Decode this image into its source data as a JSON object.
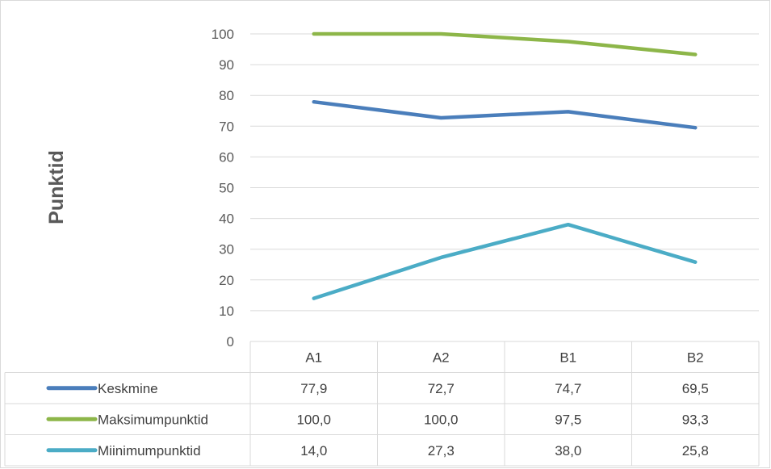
{
  "chart_data": {
    "type": "line",
    "ylabel": "Punktid",
    "categories": [
      "A1",
      "A2",
      "B1",
      "B2"
    ],
    "ylim": [
      0,
      100
    ],
    "yticks": [
      "0",
      "10",
      "20",
      "30",
      "40",
      "50",
      "60",
      "70",
      "80",
      "90",
      "100"
    ],
    "grid": true,
    "legend_placement": "data-table",
    "series": [
      {
        "name": "Keskmine",
        "color": "#4a7ebb",
        "values": [
          77.9,
          72.7,
          74.7,
          69.5
        ],
        "labels": [
          "77,9",
          "72,7",
          "74,7",
          "69,5"
        ]
      },
      {
        "name": "Maksimumpunktid",
        "color": "#8db649",
        "values": [
          100.0,
          100.0,
          97.5,
          93.3
        ],
        "labels": [
          "100,0",
          "100,0",
          "97,5",
          "93,3"
        ]
      },
      {
        "name": "Miinimumpunktid",
        "color": "#4bacc6",
        "values": [
          14.0,
          27.3,
          38.0,
          25.8
        ],
        "labels": [
          "14,0",
          "27,3",
          "38,0",
          "25,8"
        ]
      }
    ]
  }
}
